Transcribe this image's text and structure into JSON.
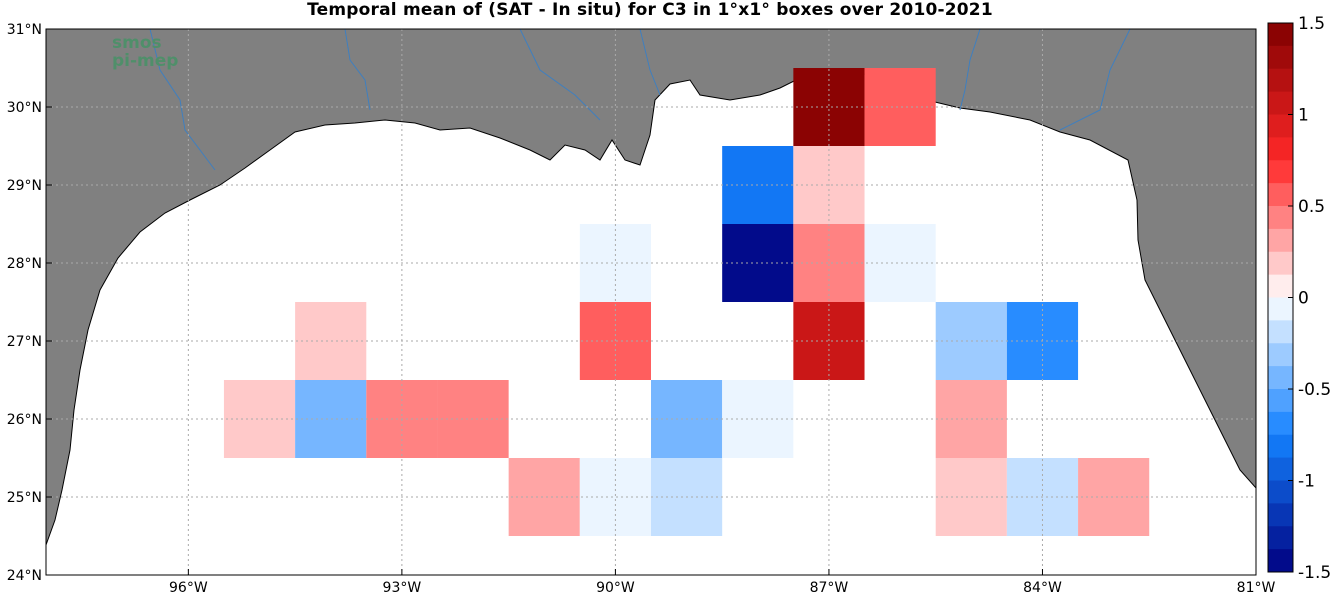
{
  "chart_data": {
    "type": "heatmap",
    "title": "Temporal mean of (SAT - In situ) for C3 in 1°x1° boxes over 2010-2021",
    "x_range": [
      -98,
      -81
    ],
    "y_range": [
      24,
      31
    ],
    "x_ticks": [
      {
        "value": -96,
        "label": "96°W"
      },
      {
        "value": -93,
        "label": "93°W"
      },
      {
        "value": -90,
        "label": "90°W"
      },
      {
        "value": -87,
        "label": "87°W"
      },
      {
        "value": -84,
        "label": "84°W"
      },
      {
        "value": -81,
        "label": "81°W"
      }
    ],
    "y_ticks": [
      {
        "value": 24,
        "label": "24°N"
      },
      {
        "value": 25,
        "label": "25°N"
      },
      {
        "value": 26,
        "label": "26°N"
      },
      {
        "value": 27,
        "label": "27°N"
      },
      {
        "value": 28,
        "label": "28°N"
      },
      {
        "value": 29,
        "label": "29°N"
      },
      {
        "value": 30,
        "label": "30°N"
      },
      {
        "value": 31,
        "label": "31°N"
      }
    ],
    "grid": true,
    "colorbar": {
      "range": [
        -1.5,
        1.5
      ],
      "levels": 24,
      "ticks": [
        1.5,
        1,
        0.5,
        0,
        -0.5,
        -1,
        -1.5
      ],
      "tick_labels": [
        "1.5",
        "1",
        "0.5",
        "0",
        "-0.5",
        "-1",
        "-1.5"
      ]
    },
    "cells": [
      {
        "lon": -87,
        "lat": 30,
        "value": 1.4
      },
      {
        "lon": -86,
        "lat": 30,
        "value": 0.6
      },
      {
        "lon": -88,
        "lat": 29,
        "value": -0.85
      },
      {
        "lon": -87,
        "lat": 29,
        "value": 0.15
      },
      {
        "lon": -90,
        "lat": 28,
        "value": -0.1
      },
      {
        "lon": -88,
        "lat": 28,
        "value": -1.45
      },
      {
        "lon": -87,
        "lat": 28,
        "value": 0.4
      },
      {
        "lon": -86,
        "lat": 28,
        "value": -0.1
      },
      {
        "lon": -94,
        "lat": 27,
        "value": 0.15
      },
      {
        "lon": -90,
        "lat": 27,
        "value": 0.55
      },
      {
        "lon": -87,
        "lat": 27,
        "value": 1.1
      },
      {
        "lon": -85,
        "lat": 27,
        "value": -0.35
      },
      {
        "lon": -84,
        "lat": 27,
        "value": -0.75
      },
      {
        "lon": -95,
        "lat": 26,
        "value": 0.15
      },
      {
        "lon": -94,
        "lat": 26,
        "value": -0.45
      },
      {
        "lon": -93,
        "lat": 26,
        "value": 0.4
      },
      {
        "lon": -92,
        "lat": 26,
        "value": 0.4
      },
      {
        "lon": -89,
        "lat": 26,
        "value": -0.45
      },
      {
        "lon": -88,
        "lat": 26,
        "value": -0.1
      },
      {
        "lon": -85,
        "lat": 26,
        "value": 0.3
      },
      {
        "lon": -91,
        "lat": 25,
        "value": 0.3
      },
      {
        "lon": -90,
        "lat": 25,
        "value": -0.1
      },
      {
        "lon": -89,
        "lat": 25,
        "value": -0.2
      },
      {
        "lon": -85,
        "lat": 25,
        "value": 0.15
      },
      {
        "lon": -84,
        "lat": 25,
        "value": -0.2
      },
      {
        "lon": -83,
        "lat": 25,
        "value": 0.3
      }
    ]
  },
  "logo": {
    "line1": "smos",
    "line2": "pi-mep"
  },
  "colors": {
    "land": "#808080",
    "ocean": "#ffffff",
    "river": "#3f7fbf"
  }
}
